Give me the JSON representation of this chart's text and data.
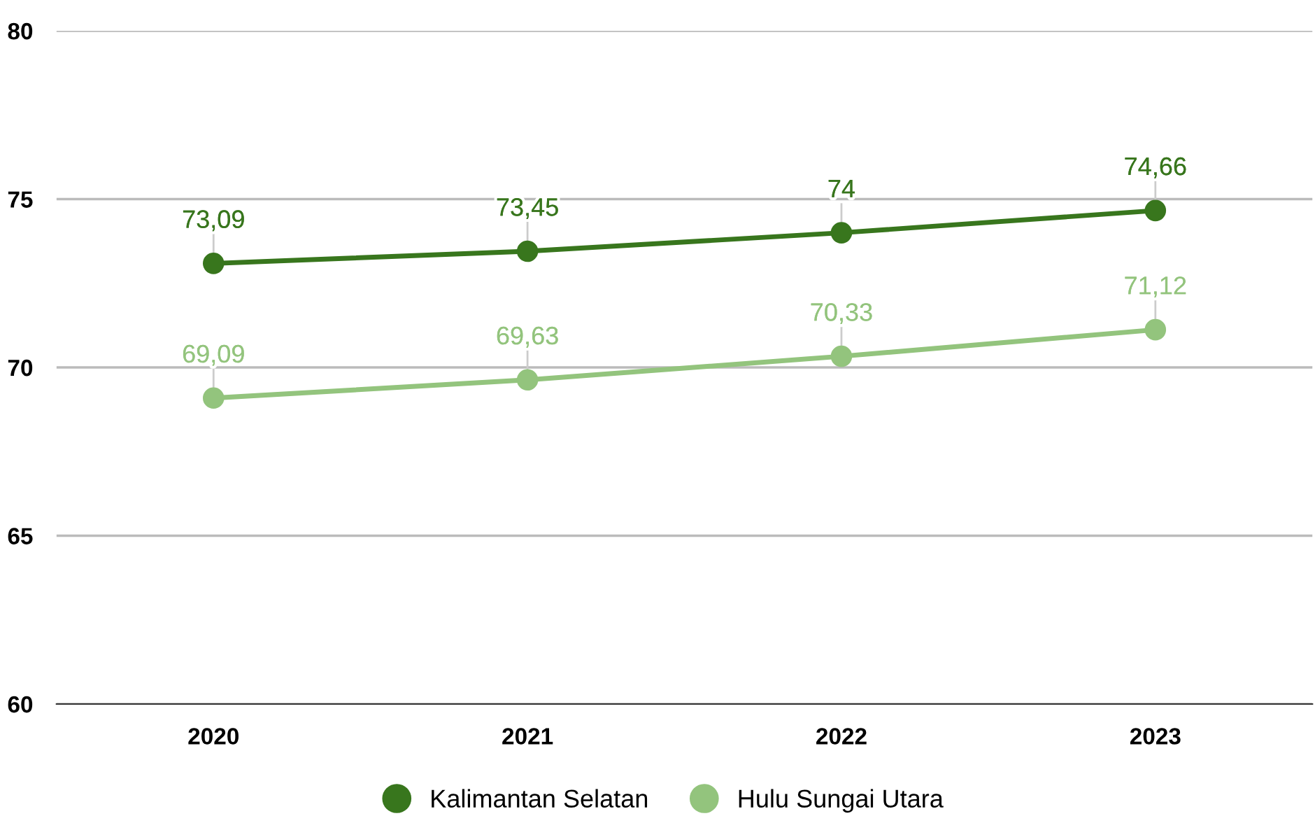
{
  "chart_data": {
    "type": "line",
    "categories": [
      "2020",
      "2021",
      "2022",
      "2023"
    ],
    "series": [
      {
        "name": "Kalimantan Selatan",
        "color": "#38761d",
        "values": [
          73.09,
          73.45,
          74,
          74.66
        ],
        "value_labels": [
          "73,09",
          "73,45",
          "74",
          "74,66"
        ]
      },
      {
        "name": "Hulu Sungai Utara",
        "color": "#93c47d",
        "values": [
          69.09,
          69.63,
          70.33,
          71.12
        ],
        "value_labels": [
          "69,09",
          "69,63",
          "70,33",
          "71,12"
        ]
      }
    ],
    "ylim": [
      60,
      80
    ],
    "yticks": [
      60,
      65,
      70,
      75,
      80
    ],
    "grid": "y",
    "legend": "bottom",
    "marker": "circle",
    "line_style": "solid"
  }
}
